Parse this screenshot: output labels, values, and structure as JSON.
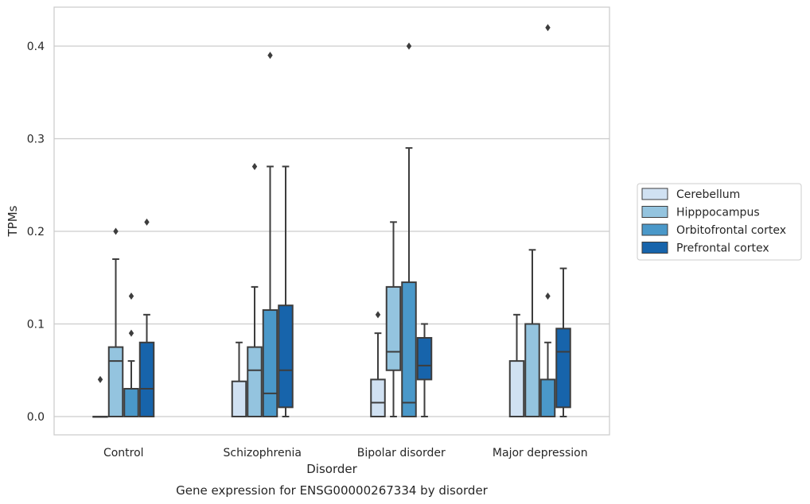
{
  "chart_data": {
    "type": "box",
    "title": "",
    "caption": "Gene expression for ENSG00000267334 by disorder",
    "xlabel": "Disorder",
    "ylabel": "TPMs",
    "ylim": [
      -0.02,
      0.442
    ],
    "yticks": [
      0.0,
      0.1,
      0.2,
      0.3,
      0.4
    ],
    "ytick_labels": [
      "0.0",
      "0.1",
      "0.2",
      "0.3",
      "0.4"
    ],
    "grid": true,
    "legend_position": "right",
    "categories": [
      "Control",
      "Schizophrenia",
      "Bipolar disorder",
      "Major depression"
    ],
    "series": [
      {
        "name": "Cerebellum",
        "color": "#d0e1f2",
        "boxes": [
          {
            "whislo": 0,
            "q1": 0,
            "med": 0,
            "q3": 0,
            "whishi": 0,
            "fliers": [
              0.04
            ]
          },
          {
            "whislo": 0,
            "q1": 0,
            "med": 0,
            "q3": 0.038,
            "whishi": 0.08,
            "fliers": []
          },
          {
            "whislo": 0,
            "q1": 0,
            "med": 0.015,
            "q3": 0.04,
            "whishi": 0.09,
            "fliers": [
              0.11
            ]
          },
          {
            "whislo": 0,
            "q1": 0,
            "med": 0,
            "q3": 0.06,
            "whishi": 0.11,
            "fliers": []
          }
        ]
      },
      {
        "name": "Hipppocampus",
        "color": "#94c4df",
        "boxes": [
          {
            "whislo": 0,
            "q1": 0,
            "med": 0.06,
            "q3": 0.075,
            "whishi": 0.17,
            "fliers": [
              0.2
            ]
          },
          {
            "whislo": 0,
            "q1": 0,
            "med": 0.05,
            "q3": 0.075,
            "whishi": 0.14,
            "fliers": [
              0.27
            ]
          },
          {
            "whislo": 0,
            "q1": 0.05,
            "med": 0.07,
            "q3": 0.14,
            "whishi": 0.21,
            "fliers": []
          },
          {
            "whislo": 0,
            "q1": 0,
            "med": 0,
            "q3": 0.1,
            "whishi": 0.18,
            "fliers": []
          }
        ]
      },
      {
        "name": "Orbitofrontal cortex",
        "color": "#4a98c9",
        "boxes": [
          {
            "whislo": 0,
            "q1": 0,
            "med": 0.03,
            "q3": 0.03,
            "whishi": 0.06,
            "fliers": [
              0.09,
              0.13
            ]
          },
          {
            "whislo": 0,
            "q1": 0,
            "med": 0.025,
            "q3": 0.115,
            "whishi": 0.27,
            "fliers": [
              0.39
            ]
          },
          {
            "whislo": 0,
            "q1": 0,
            "med": 0.015,
            "q3": 0.145,
            "whishi": 0.29,
            "fliers": [
              0.4
            ]
          },
          {
            "whislo": 0,
            "q1": 0,
            "med": 0,
            "q3": 0.04,
            "whishi": 0.08,
            "fliers": [
              0.13,
              0.42
            ]
          }
        ]
      },
      {
        "name": "Prefrontal cortex",
        "color": "#1764ab",
        "boxes": [
          {
            "whislo": 0,
            "q1": 0,
            "med": 0.03,
            "q3": 0.08,
            "whishi": 0.11,
            "fliers": [
              0.21
            ]
          },
          {
            "whislo": 0,
            "q1": 0.01,
            "med": 0.05,
            "q3": 0.12,
            "whishi": 0.27,
            "fliers": []
          },
          {
            "whislo": 0,
            "q1": 0.04,
            "med": 0.055,
            "q3": 0.085,
            "whishi": 0.1,
            "fliers": []
          },
          {
            "whislo": 0,
            "q1": 0.01,
            "med": 0.07,
            "q3": 0.095,
            "whishi": 0.16,
            "fliers": []
          }
        ]
      }
    ]
  }
}
